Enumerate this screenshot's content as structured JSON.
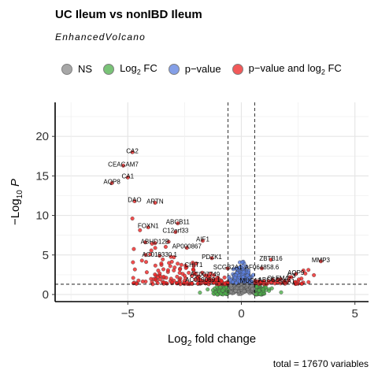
{
  "chart_data": {
    "type": "scatter",
    "title": "UC Ileum vs nonIBD Ileum",
    "subtitle": "EnhancedVolcano",
    "xlabel": "Log2 fold change",
    "ylabel": "−Log10 P",
    "xlim": [
      -8.2,
      5.6
    ],
    "ylim": [
      -0.9,
      24.3
    ],
    "x_ticks": [
      -5,
      0,
      5
    ],
    "y_ticks": [
      0,
      5,
      10,
      15,
      20
    ],
    "fc_cutoff": 0.585,
    "p_cutoff_neglog10": 1.3,
    "caption": "total = 17670 variables",
    "legend": {
      "position": "top",
      "items": [
        {
          "label": "NS",
          "color": "#8a8a8a"
        },
        {
          "label": "Log2 FC",
          "color": "#4daf4a"
        },
        {
          "label": "p−value",
          "color": "#5b7fe0"
        },
        {
          "label": "p−value and log2 FC",
          "color": "#ee2222"
        }
      ]
    },
    "labeled_genes": [
      {
        "label": "CA2",
        "x": -4.8,
        "y": 18.0
      },
      {
        "label": "CEACAM7",
        "x": -5.2,
        "y": 16.3
      },
      {
        "label": "CA1",
        "x": -5.0,
        "y": 14.8
      },
      {
        "label": "AQP8",
        "x": -5.7,
        "y": 14.1
      },
      {
        "label": "DAO",
        "x": -4.7,
        "y": 11.8
      },
      {
        "label": "ARTN",
        "x": -3.8,
        "y": 11.6
      },
      {
        "label": "ABCB11",
        "x": -2.8,
        "y": 9.0
      },
      {
        "label": "FOXN1",
        "x": -4.1,
        "y": 8.5
      },
      {
        "label": "C12orf33",
        "x": -2.9,
        "y": 7.9
      },
      {
        "label": "AIF1",
        "x": -1.7,
        "y": 6.8
      },
      {
        "label": "ABHD12B",
        "x": -3.8,
        "y": 6.5
      },
      {
        "label": "AP000867",
        "x": -2.4,
        "y": 5.9
      },
      {
        "label": "AC019330.1",
        "x": -3.6,
        "y": 4.9
      },
      {
        "label": "PDZK1",
        "x": -1.3,
        "y": 4.6
      },
      {
        "label": "CHIT1",
        "x": -2.1,
        "y": 3.6
      },
      {
        "label": "AC007749",
        "x": -1.6,
        "y": 2.4
      },
      {
        "label": "AC019069.1",
        "x": -1.7,
        "y": 1.7
      },
      {
        "label": "SCGB2A1",
        "x": -0.6,
        "y": 3.3
      },
      {
        "label": "AF064858.6",
        "x": 0.9,
        "y": 3.3
      },
      {
        "label": "ZBTB16",
        "x": 1.3,
        "y": 4.4
      },
      {
        "label": "MMP3",
        "x": 3.5,
        "y": 4.2
      },
      {
        "label": "MUC17",
        "x": 0.4,
        "y": 1.6
      },
      {
        "label": "ABCG5",
        "x": 1.2,
        "y": 1.7
      },
      {
        "label": "OLFM4",
        "x": 1.6,
        "y": 1.9
      },
      {
        "label": "SAA1",
        "x": 2.0,
        "y": 1.5
      },
      {
        "label": "C3",
        "x": 2.2,
        "y": 2.2
      },
      {
        "label": "AQP9",
        "x": 2.4,
        "y": 2.6
      }
    ]
  }
}
